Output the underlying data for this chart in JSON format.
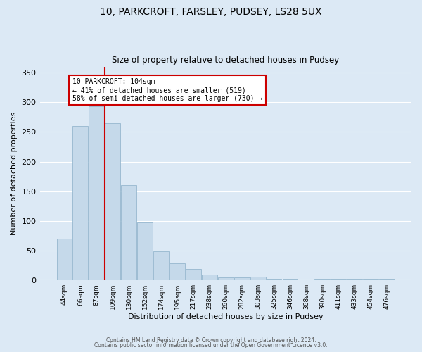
{
  "title": "10, PARKCROFT, FARSLEY, PUDSEY, LS28 5UX",
  "subtitle": "Size of property relative to detached houses in Pudsey",
  "xlabel": "Distribution of detached houses by size in Pudsey",
  "ylabel": "Number of detached properties",
  "bar_color": "#c5d9ea",
  "bar_edge_color": "#8aafc8",
  "background_color": "#dce9f5",
  "grid_color": "#ffffff",
  "bin_labels": [
    "44sqm",
    "66sqm",
    "87sqm",
    "109sqm",
    "130sqm",
    "152sqm",
    "174sqm",
    "195sqm",
    "217sqm",
    "238sqm",
    "260sqm",
    "282sqm",
    "303sqm",
    "325sqm",
    "346sqm",
    "368sqm",
    "390sqm",
    "411sqm",
    "433sqm",
    "454sqm",
    "476sqm"
  ],
  "bar_heights": [
    70,
    260,
    293,
    265,
    160,
    98,
    49,
    29,
    19,
    10,
    5,
    5,
    6,
    2,
    1,
    0,
    2,
    1,
    1,
    1,
    1
  ],
  "vline_color": "#cc0000",
  "annotation_text": "10 PARKCROFT: 104sqm\n← 41% of detached houses are smaller (519)\n58% of semi-detached houses are larger (730) →",
  "annotation_box_color": "#ffffff",
  "annotation_box_edge_color": "#cc0000",
  "ylim": [
    0,
    360
  ],
  "yticks": [
    0,
    50,
    100,
    150,
    200,
    250,
    300,
    350
  ],
  "footer_line1": "Contains HM Land Registry data © Crown copyright and database right 2024.",
  "footer_line2": "Contains public sector information licensed under the Open Government Licence v3.0."
}
